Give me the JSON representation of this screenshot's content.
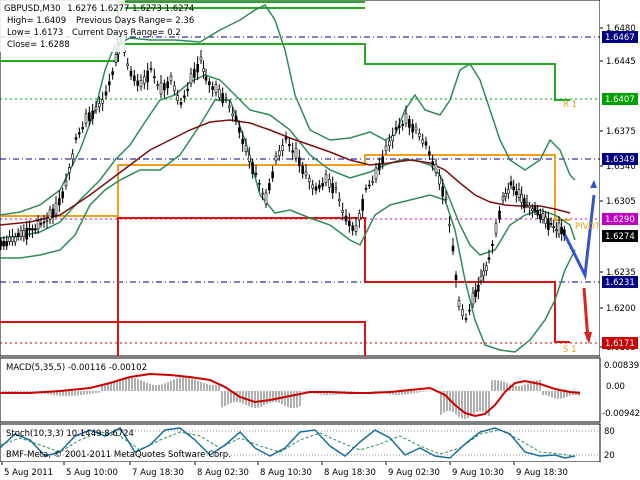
{
  "window": {
    "symbol_line": "GBPUSD,M30",
    "ohlc_line": "1.6276 1.6277 1.6273 1.6274"
  },
  "info": {
    "high": "High= 1.6409",
    "low": "Low= 1.6173",
    "close": "Close= 1.6288",
    "prev_range": "Previous Days Range= 2.36",
    "curr_range": "Current Days Range= 0.2"
  },
  "price_axis": {
    "ticks": [
      "1.6480",
      "1.6445",
      "1.6375",
      "1.6340",
      "1.6305",
      "1.6235",
      "1.6200",
      "1.6165"
    ],
    "badges": [
      {
        "label": "1.6467",
        "color": "#000080"
      },
      {
        "label": "1.6407",
        "color": "#00a000"
      },
      {
        "label": "1.6349",
        "color": "#000080"
      },
      {
        "label": "1.6290",
        "color": "#c000c0"
      },
      {
        "label": "1.6274",
        "color": "#000000"
      },
      {
        "label": "1.6231",
        "color": "#000080"
      },
      {
        "label": "1.6171",
        "color": "#cc0000"
      }
    ]
  },
  "pivot_labels": {
    "r1": "R 1",
    "pivot": "PIVOT",
    "s1": "S 1"
  },
  "macd": {
    "label": "MACD(5,35,5) -0.00116 -0.00102",
    "ticks": [
      "0.00839",
      "0.00",
      "-0.00942"
    ]
  },
  "stoch": {
    "label": "Stoch(10,3,3) 10.1449 8.6724",
    "ticks": [
      "80",
      "20"
    ]
  },
  "copyright": "BMF-Meta, © 2001-2011 MetaQuotes Software Corp.",
  "time_axis": [
    "5 Aug 2011",
    "5 Aug 10:00",
    "7 Aug 18:30",
    "8 Aug 02:30",
    "8 Aug 10:30",
    "8 Aug 18:30",
    "9 Aug 02:30",
    "9 Aug 10:30",
    "9 Aug 18:30"
  ],
  "colors": {
    "ma": "#7a1010",
    "bands": "#2e8b57",
    "green_level": "#22aa22",
    "orange_level": "#f0a020",
    "red_level": "#dd1111",
    "blue_arrow": "#3355cc",
    "red_arrow": "#dd2222",
    "macd_signal": "#cc0000",
    "macd_hist": "#b0b0b0",
    "stoch_main": "#1a6e9a",
    "stoch_signal": "#2e8b57"
  }
}
